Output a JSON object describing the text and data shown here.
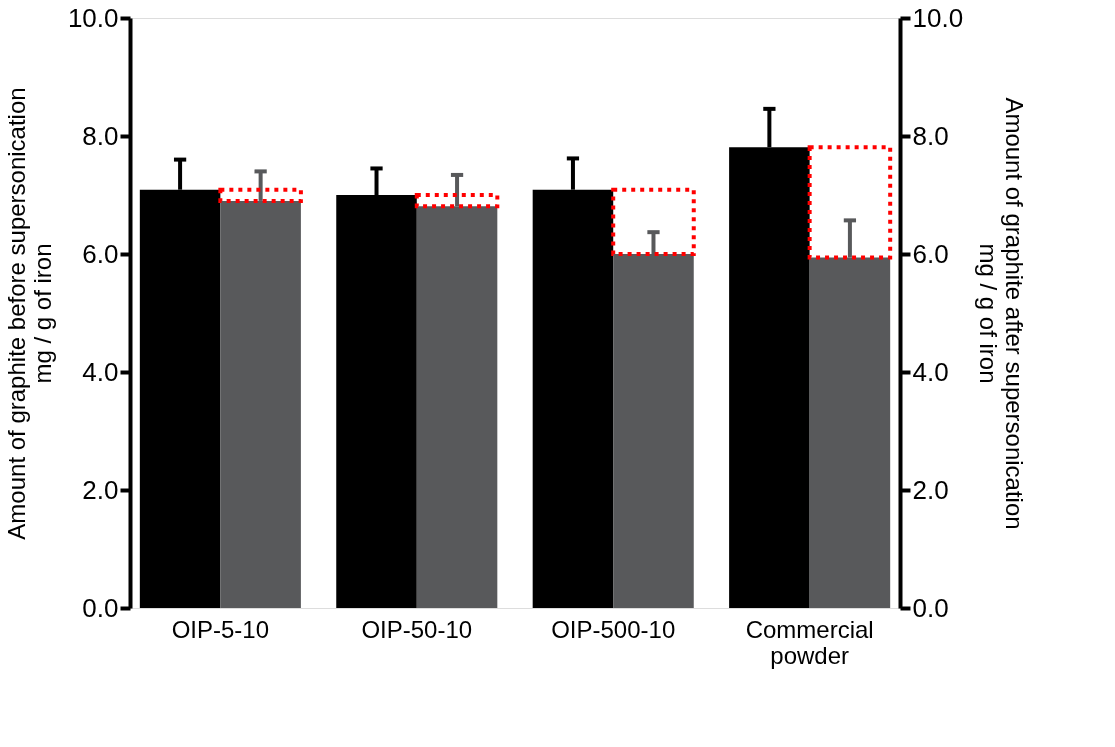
{
  "chart_data": {
    "type": "bar",
    "categories": [
      "OIP-5-10",
      "OIP-50-10",
      "OIP-500-10",
      "Commercial powder"
    ],
    "series": [
      {
        "color": "#000000",
        "values": [
          7.09,
          7.0,
          7.09,
          7.81
        ],
        "errors": [
          [
            7.09,
            7.6
          ],
          [
            7.0,
            7.45
          ],
          [
            7.09,
            7.62
          ],
          [
            7.81,
            8.46
          ]
        ]
      },
      {
        "color": "#58595b",
        "axis": "y2",
        "values": [
          6.9,
          6.81,
          6.0,
          5.94
        ],
        "errors": [
          [
            6.9,
            7.4
          ],
          [
            6.81,
            7.34
          ],
          [
            6.0,
            6.37
          ],
          [
            5.94,
            6.57
          ]
        ]
      }
    ],
    "ylabel": "Amount of graphite before supersonication\nmg / g of iron",
    "y2label": "Amount of graphite after supersonication\nmg / g of iron",
    "ylim": [
      0,
      10
    ],
    "yticks": [
      {
        "value": 0,
        "label": "0.0"
      },
      {
        "value": 2,
        "label": "2.0"
      },
      {
        "value": 4,
        "label": "4.0"
      },
      {
        "value": 6,
        "label": "6.0"
      },
      {
        "value": 8,
        "label": "8.0"
      },
      {
        "value": 10,
        "label": "10.0"
      }
    ],
    "y2lim": [
      0,
      10
    ],
    "y2ticks": [
      {
        "value": 0,
        "label": "0.0"
      },
      {
        "value": 2,
        "label": "2.0"
      },
      {
        "value": 4,
        "label": "4.0"
      },
      {
        "value": 6,
        "label": "6.0"
      },
      {
        "value": 8,
        "label": "8.0"
      },
      {
        "value": 10,
        "label": "10.0"
      }
    ],
    "grid": false,
    "legend": false
  }
}
